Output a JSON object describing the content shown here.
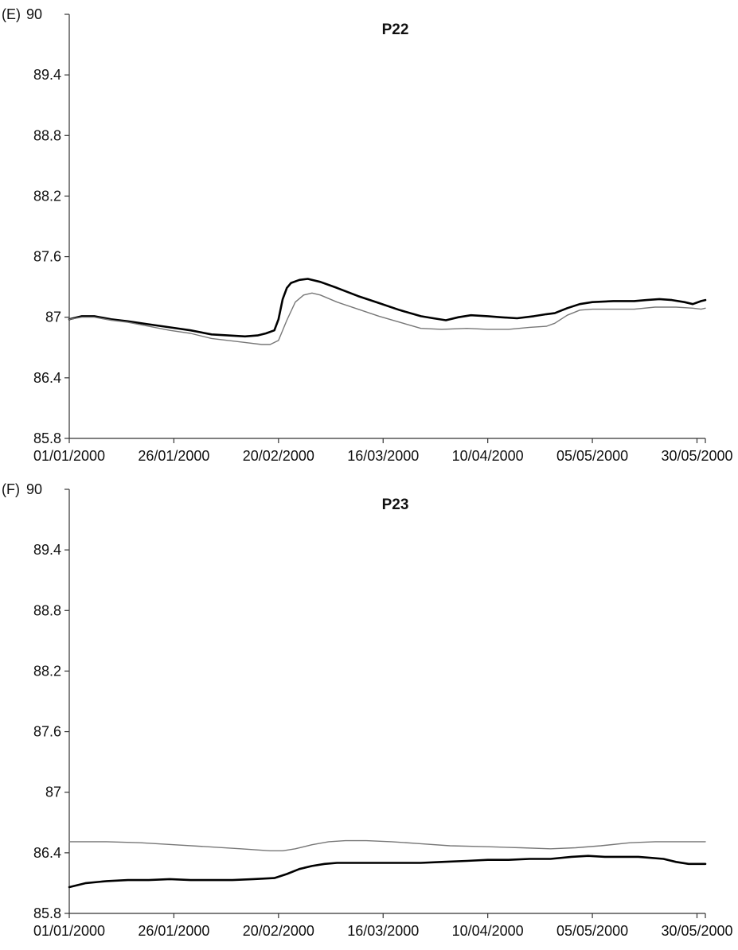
{
  "chart_data": [
    {
      "type": "line",
      "panel_label": "(E)",
      "title": "P22",
      "xlabel": "",
      "ylabel": "",
      "ylim": [
        85.8,
        90
      ],
      "yticks": [
        "85.8",
        "86.4",
        "87",
        "87.6",
        "88.2",
        "88.8",
        "89.4",
        "90"
      ],
      "yticks_values": [
        85.8,
        86.4,
        87.0,
        87.6,
        88.2,
        88.8,
        89.4,
        90.0
      ],
      "xticks": [
        "01/01/2000",
        "26/01/2000",
        "20/02/2000",
        "16/03/2000",
        "10/04/2000",
        "05/05/2000",
        "30/05/2000"
      ],
      "xlim": [
        "2000-01-01",
        "2000-06-01"
      ],
      "grid": false,
      "legend": "none",
      "series": [
        {
          "color": "#000000",
          "x": [
            "2000-01-01",
            "2000-01-04",
            "2000-01-07",
            "2000-01-11",
            "2000-01-15",
            "2000-01-20",
            "2000-01-25",
            "2000-01-30",
            "2000-02-04",
            "2000-02-08",
            "2000-02-12",
            "2000-02-15",
            "2000-02-17",
            "2000-02-19",
            "2000-02-20",
            "2000-02-21",
            "2000-02-22",
            "2000-02-23",
            "2000-02-25",
            "2000-02-27",
            "2000-03-01",
            "2000-03-05",
            "2000-03-10",
            "2000-03-15",
            "2000-03-20",
            "2000-03-25",
            "2000-03-28",
            "2000-03-31",
            "2000-04-03",
            "2000-04-06",
            "2000-04-10",
            "2000-04-13",
            "2000-04-17",
            "2000-04-21",
            "2000-04-24",
            "2000-04-26",
            "2000-04-29",
            "2000-05-02",
            "2000-05-05",
            "2000-05-10",
            "2000-05-15",
            "2000-05-18",
            "2000-05-21",
            "2000-05-24",
            "2000-05-27",
            "2000-05-29",
            "2000-05-31",
            "2000-06-01"
          ],
          "y": [
            86.98,
            87.01,
            87.01,
            86.98,
            86.96,
            86.93,
            86.9,
            86.87,
            86.83,
            86.82,
            86.81,
            86.82,
            86.84,
            86.87,
            86.98,
            87.18,
            87.29,
            87.34,
            87.37,
            87.38,
            87.35,
            87.29,
            87.21,
            87.14,
            87.07,
            87.01,
            86.99,
            86.97,
            87.0,
            87.02,
            87.01,
            87.0,
            86.99,
            87.01,
            87.03,
            87.04,
            87.09,
            87.13,
            87.15,
            87.16,
            87.16,
            87.17,
            87.18,
            87.17,
            87.15,
            87.13,
            87.16,
            87.17
          ]
        },
        {
          "color": "#777777",
          "x": [
            "2000-01-01",
            "2000-01-04",
            "2000-01-07",
            "2000-01-11",
            "2000-01-15",
            "2000-01-20",
            "2000-01-25",
            "2000-01-30",
            "2000-02-04",
            "2000-02-08",
            "2000-02-12",
            "2000-02-16",
            "2000-02-18",
            "2000-02-20",
            "2000-02-22",
            "2000-02-24",
            "2000-02-26",
            "2000-02-28",
            "2000-03-01",
            "2000-03-05",
            "2000-03-10",
            "2000-03-15",
            "2000-03-20",
            "2000-03-25",
            "2000-03-30",
            "2000-04-05",
            "2000-04-10",
            "2000-04-15",
            "2000-04-20",
            "2000-04-24",
            "2000-04-26",
            "2000-04-29",
            "2000-05-02",
            "2000-05-05",
            "2000-05-10",
            "2000-05-15",
            "2000-05-20",
            "2000-05-25",
            "2000-05-29",
            "2000-05-31",
            "2000-06-01"
          ],
          "y": [
            86.98,
            87.0,
            87.0,
            86.97,
            86.95,
            86.91,
            86.87,
            86.84,
            86.79,
            86.77,
            86.75,
            86.73,
            86.73,
            86.77,
            86.97,
            87.15,
            87.22,
            87.24,
            87.22,
            87.15,
            87.08,
            87.01,
            86.95,
            86.89,
            86.88,
            86.89,
            86.88,
            86.88,
            86.9,
            86.91,
            86.94,
            87.02,
            87.07,
            87.08,
            87.08,
            87.08,
            87.1,
            87.1,
            87.09,
            87.08,
            87.09
          ]
        }
      ]
    },
    {
      "type": "line",
      "panel_label": "(F)",
      "title": "P23",
      "xlabel": "",
      "ylabel": "",
      "ylim": [
        85.8,
        90
      ],
      "yticks": [
        "85.8",
        "86.4",
        "87",
        "87.6",
        "88.2",
        "88.8",
        "89.4",
        "90"
      ],
      "yticks_values": [
        85.8,
        86.4,
        87.0,
        87.6,
        88.2,
        88.8,
        89.4,
        90.0
      ],
      "xticks": [
        "01/01/2000",
        "26/01/2000",
        "20/02/2000",
        "16/03/2000",
        "10/04/2000",
        "05/05/2000",
        "30/05/2000"
      ],
      "xlim": [
        "2000-01-01",
        "2000-06-01"
      ],
      "grid": false,
      "legend": "none",
      "series": [
        {
          "color": "#000000",
          "x": [
            "2000-01-01",
            "2000-01-05",
            "2000-01-10",
            "2000-01-15",
            "2000-01-20",
            "2000-01-25",
            "2000-01-30",
            "2000-02-04",
            "2000-02-09",
            "2000-02-14",
            "2000-02-19",
            "2000-02-22",
            "2000-02-25",
            "2000-02-28",
            "2000-03-02",
            "2000-03-05",
            "2000-03-10",
            "2000-03-15",
            "2000-03-20",
            "2000-03-25",
            "2000-03-30",
            "2000-04-05",
            "2000-04-10",
            "2000-04-15",
            "2000-04-20",
            "2000-04-25",
            "2000-04-30",
            "2000-05-04",
            "2000-05-08",
            "2000-05-12",
            "2000-05-16",
            "2000-05-19",
            "2000-05-22",
            "2000-05-25",
            "2000-05-28",
            "2000-05-31",
            "2000-06-01"
          ],
          "y": [
            86.06,
            86.1,
            86.12,
            86.13,
            86.13,
            86.14,
            86.13,
            86.13,
            86.13,
            86.14,
            86.15,
            86.19,
            86.24,
            86.27,
            86.29,
            86.3,
            86.3,
            86.3,
            86.3,
            86.3,
            86.31,
            86.32,
            86.33,
            86.33,
            86.34,
            86.34,
            86.36,
            86.37,
            86.36,
            86.36,
            86.36,
            86.35,
            86.34,
            86.31,
            86.29,
            86.29,
            86.29
          ]
        },
        {
          "color": "#777777",
          "x": [
            "2000-01-01",
            "2000-01-10",
            "2000-01-18",
            "2000-01-26",
            "2000-02-03",
            "2000-02-11",
            "2000-02-18",
            "2000-02-21",
            "2000-02-24",
            "2000-02-28",
            "2000-03-03",
            "2000-03-07",
            "2000-03-12",
            "2000-03-18",
            "2000-03-25",
            "2000-04-01",
            "2000-04-10",
            "2000-04-18",
            "2000-04-25",
            "2000-05-01",
            "2000-05-07",
            "2000-05-14",
            "2000-05-20",
            "2000-05-26",
            "2000-06-01"
          ],
          "y": [
            86.51,
            86.51,
            86.5,
            86.48,
            86.46,
            86.44,
            86.42,
            86.42,
            86.44,
            86.48,
            86.51,
            86.52,
            86.52,
            86.51,
            86.49,
            86.47,
            86.46,
            86.45,
            86.44,
            86.45,
            86.47,
            86.5,
            86.51,
            86.51,
            86.51
          ]
        }
      ]
    }
  ]
}
